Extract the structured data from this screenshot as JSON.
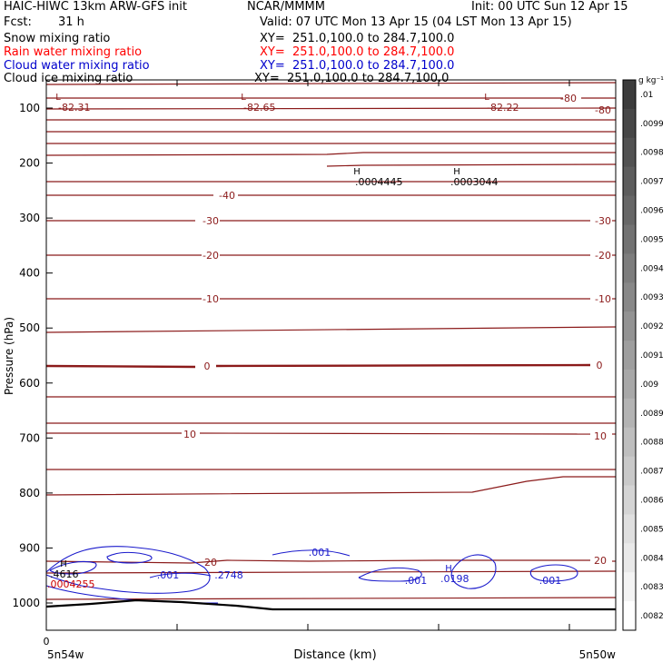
{
  "header": {
    "model_line": "HAIC-HIWC 13km ARW-GFS init",
    "org": "NCAR/MMMM",
    "init": "Init: 00 UTC Sun 12 Apr 15",
    "fcst_label": "Fcst:",
    "fcst_value": "31 h",
    "valid": "Valid: 07 UTC Mon 13 Apr 15 (04 LST Mon 13 Apr 15)"
  },
  "fields": [
    {
      "name": "Snow mixing ratio",
      "xy": "XY=  251.0,100.0 to 284.7,100.0",
      "color": "#000000"
    },
    {
      "name": "Rain water mixing ratio",
      "xy": "XY=  251.0,100.0 to 284.7,100.0",
      "color": "#ff0000"
    },
    {
      "name": "Cloud water mixing ratio",
      "xy": "XY=  251.0,100.0 to 284.7,100.0",
      "color": "#0000cc"
    },
    {
      "name": "Cloud ice mixing ratio",
      "xy": "XY=  251.0,100.0 to 284.7,100.0",
      "color": "#000000"
    }
  ],
  "chart_data": {
    "type": "contour_cross_section",
    "xlabel": "Distance (km)",
    "ylabel": "Pressure (hPa)",
    "ylim": [
      1050,
      50
    ],
    "y_ticks": [
      100,
      200,
      300,
      400,
      500,
      600,
      700,
      800,
      900,
      1000
    ],
    "x_tick_labels": [
      "0"
    ],
    "x_end_labels": [
      "5n54w",
      "5n50w"
    ],
    "colorbar": {
      "unit": "g kg⁻¹",
      "ticks": [
        ".01",
        ".0099",
        ".0098",
        ".0097",
        ".0096",
        ".0095",
        ".0094",
        ".0093",
        ".0092",
        ".0091",
        ".009",
        ".0089",
        ".0088",
        ".0087",
        ".0086",
        ".0085",
        ".0084",
        ".0083",
        ".0082"
      ]
    },
    "temperature_contour_labels": [
      "-80",
      "-80",
      "-40",
      "-30",
      "-30",
      "-20",
      "-20",
      "-10",
      "-10",
      "0",
      "0",
      "10",
      "10",
      "20",
      "20"
    ],
    "extrema_labels": [
      {
        "type": "L",
        "value": "-82.31"
      },
      {
        "type": "L",
        "value": "-82.65"
      },
      {
        "type": "L",
        "value": "-82.22"
      },
      {
        "type": "H",
        "value": ".0004445"
      },
      {
        "type": "H",
        "value": ".0003044"
      },
      {
        "type": "H",
        "value": ".4616"
      },
      {
        "type": "H",
        "value": ".0004255"
      },
      {
        "type": "H",
        "value": ".0198"
      }
    ],
    "cloud_water_labels": [
      ".001",
      ".001",
      ".2748",
      ".001",
      ".001"
    ]
  },
  "colors": {
    "temperature": "#8b1a1a",
    "cloud_water": "#1a1acc",
    "rain_water": "#cc0000",
    "ground": "#000000",
    "axes": "#000000"
  }
}
